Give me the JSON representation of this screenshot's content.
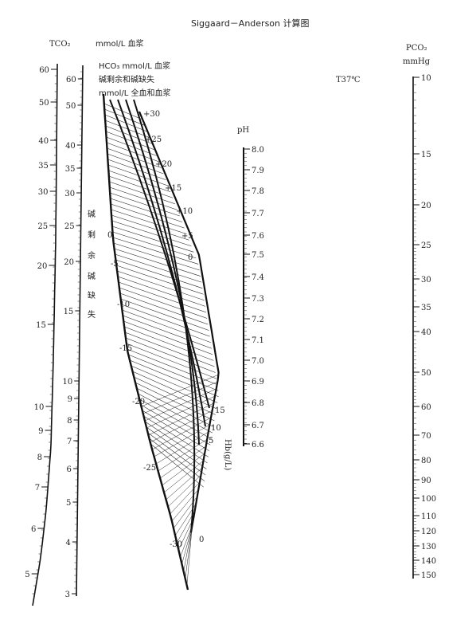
{
  "title": "Siggaard－Anderson 计算图",
  "tco2": {
    "label": "TCO₂",
    "unit": "mmol/L 血浆",
    "ticks": [
      "60",
      "50",
      "40",
      "35",
      "30",
      "25",
      "20",
      "15",
      "10",
      "9",
      "8",
      "7",
      "6",
      "5"
    ]
  },
  "hco3": {
    "label": "HCO₃ mmol/L 血浆",
    "ticks": [
      "60",
      "50",
      "40",
      "35",
      "30",
      "25",
      "20",
      "15",
      "10",
      "9",
      "8",
      "7",
      "6",
      "5",
      "4",
      "3"
    ]
  },
  "base_excess": {
    "label": "碱剩余和碱缺失",
    "unit": "mmol/L 全血和血浆",
    "vertical_label": [
      "碱",
      "剩",
      "余",
      "碱",
      "缺",
      "失"
    ],
    "upper_ticks": [
      "+30",
      "+25",
      "+20",
      "+15",
      "+10",
      "+5",
      "0"
    ],
    "lower_ticks": [
      "0",
      "-5",
      "-10",
      "-15",
      "-20",
      "-25",
      "-30"
    ]
  },
  "hb": {
    "label": "Hb(g/L)",
    "ticks": [
      "15",
      "10",
      "5",
      "0"
    ]
  },
  "ph": {
    "label": "pH",
    "ticks": [
      "8.0",
      "7.9",
      "7.8",
      "7.7",
      "7.6",
      "7.5",
      "7.4",
      "7.3",
      "7.2",
      "7.1",
      "7.0",
      "6.9",
      "6.8",
      "6.7",
      "6.6"
    ]
  },
  "temperature": "T37℃",
  "pco2": {
    "label": "PCO₂",
    "unit": "mmHg",
    "ticks": [
      "10",
      "15",
      "20",
      "25",
      "30",
      "35",
      "40",
      "50",
      "60",
      "70",
      "80",
      "90",
      "100",
      "110",
      "120",
      "130",
      "140",
      "150"
    ]
  }
}
